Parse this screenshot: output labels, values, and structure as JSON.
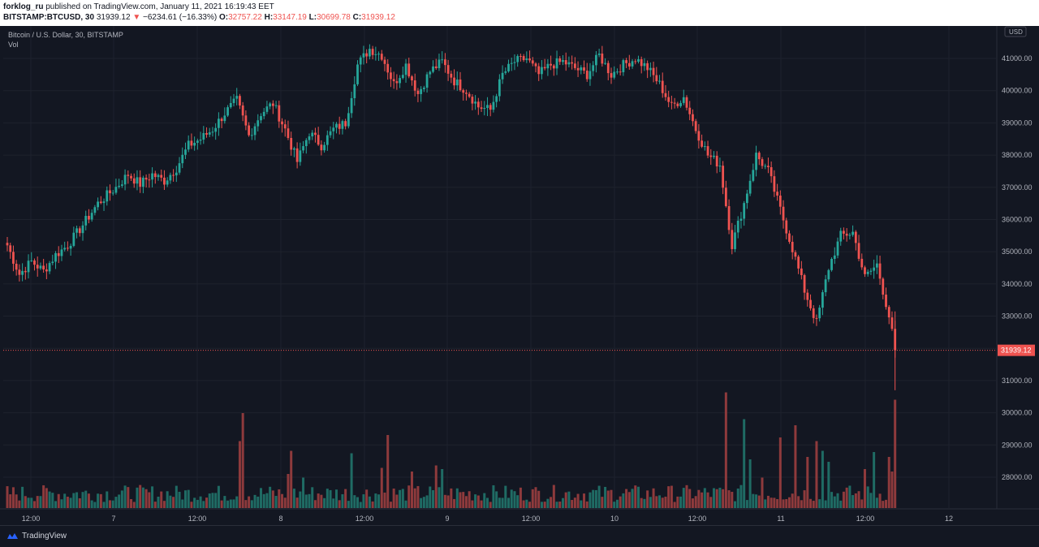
{
  "header": {
    "author": "forklog_ru",
    "published_text": "published on TradingView.com, January 11, 2021 16:19:43 EET",
    "symbol": "BITSTAMP:BTCUSD, 30",
    "last": "31939.12",
    "change": "−6234.61 (−16.33%)",
    "o_label": "O:",
    "o_value": "32757.22",
    "h_label": "H:",
    "h_value": "33147.19",
    "l_label": "L:",
    "l_value": "30699.78",
    "c_label": "C:",
    "c_value": "31939.12"
  },
  "footer": {
    "brand": "TradingView"
  },
  "colors": {
    "background": "#131722",
    "up": "#26a69a",
    "down": "#ef5350",
    "grid": "#1e222d",
    "axis_text": "#b2b5be"
  },
  "chart_data": {
    "type": "candlestick",
    "title": "Bitcoin / U.S. Dollar, 30, BITSTAMP",
    "volume_label": "Vol",
    "y_unit": "USD",
    "last_price_label": "31939.12",
    "y_ticks": [
      "41000.00",
      "40000.00",
      "39000.00",
      "38000.00",
      "37000.00",
      "36000.00",
      "35000.00",
      "34000.00",
      "33000.00",
      "32000.00",
      "31000.00",
      "30000.00",
      "29000.00",
      "28000.00"
    ],
    "x_ticks": [
      "12:00",
      "7",
      "12:00",
      "8",
      "12:00",
      "9",
      "12:00",
      "10",
      "12:00",
      "11",
      "12:00",
      "12"
    ],
    "ylim": [
      27000,
      42000
    ],
    "grid": true,
    "anchors": [
      [
        0,
        35200
      ],
      [
        4,
        34300
      ],
      [
        8,
        34700
      ],
      [
        12,
        34400
      ],
      [
        16,
        34900
      ],
      [
        20,
        35200
      ],
      [
        24,
        35700
      ],
      [
        30,
        36500
      ],
      [
        36,
        37000
      ],
      [
        40,
        37400
      ],
      [
        44,
        37100
      ],
      [
        48,
        37400
      ],
      [
        52,
        37200
      ],
      [
        56,
        37600
      ],
      [
        60,
        38300
      ],
      [
        64,
        38500
      ],
      [
        68,
        38800
      ],
      [
        72,
        39300
      ],
      [
        76,
        39700
      ],
      [
        80,
        38600
      ],
      [
        84,
        39300
      ],
      [
        88,
        39600
      ],
      [
        92,
        38800
      ],
      [
        96,
        37800
      ],
      [
        100,
        38700
      ],
      [
        104,
        38300
      ],
      [
        108,
        38800
      ],
      [
        112,
        39000
      ],
      [
        116,
        40800
      ],
      [
        120,
        41300
      ],
      [
        124,
        41100
      ],
      [
        128,
        40200
      ],
      [
        132,
        40800
      ],
      [
        136,
        39900
      ],
      [
        140,
        40600
      ],
      [
        144,
        40900
      ],
      [
        148,
        40300
      ],
      [
        152,
        40000
      ],
      [
        156,
        39500
      ],
      [
        160,
        39400
      ],
      [
        164,
        40500
      ],
      [
        168,
        40900
      ],
      [
        172,
        41000
      ],
      [
        176,
        40500
      ],
      [
        180,
        40800
      ],
      [
        184,
        40900
      ],
      [
        188,
        40700
      ],
      [
        192,
        40500
      ],
      [
        196,
        41100
      ],
      [
        200,
        40500
      ],
      [
        204,
        40800
      ],
      [
        208,
        41000
      ],
      [
        212,
        40700
      ],
      [
        216,
        40200
      ],
      [
        220,
        39500
      ],
      [
        224,
        39800
      ],
      [
        228,
        38800
      ],
      [
        232,
        38000
      ],
      [
        236,
        37700
      ],
      [
        240,
        35200
      ],
      [
        244,
        36500
      ],
      [
        248,
        38000
      ],
      [
        252,
        37500
      ],
      [
        256,
        36300
      ],
      [
        260,
        35100
      ],
      [
        264,
        33800
      ],
      [
        268,
        32800
      ],
      [
        272,
        34500
      ],
      [
        276,
        35500
      ],
      [
        280,
        35600
      ],
      [
        284,
        34200
      ],
      [
        288,
        34600
      ],
      [
        292,
        33000
      ],
      [
        294,
        31939.12
      ]
    ],
    "volume_scale": "volume values given as fraction of the tallest volume bar",
    "volume_spikes": [
      [
        77,
        0.55
      ],
      [
        78,
        0.78
      ],
      [
        93,
        0.28
      ],
      [
        94,
        0.47
      ],
      [
        98,
        0.25
      ],
      [
        114,
        0.45
      ],
      [
        124,
        0.33
      ],
      [
        126,
        0.6
      ],
      [
        134,
        0.3
      ],
      [
        142,
        0.35
      ],
      [
        144,
        0.32
      ],
      [
        238,
        0.95
      ],
      [
        244,
        0.73
      ],
      [
        246,
        0.4
      ],
      [
        256,
        0.58
      ],
      [
        261,
        0.68
      ],
      [
        268,
        0.55
      ],
      [
        270,
        0.47
      ],
      [
        272,
        0.38
      ],
      [
        287,
        0.46
      ],
      [
        292,
        0.42
      ],
      [
        294,
        0.89
      ],
      [
        293,
        0.3
      ],
      [
        250,
        0.25
      ],
      [
        265,
        0.42
      ],
      [
        284,
        0.32
      ]
    ]
  }
}
